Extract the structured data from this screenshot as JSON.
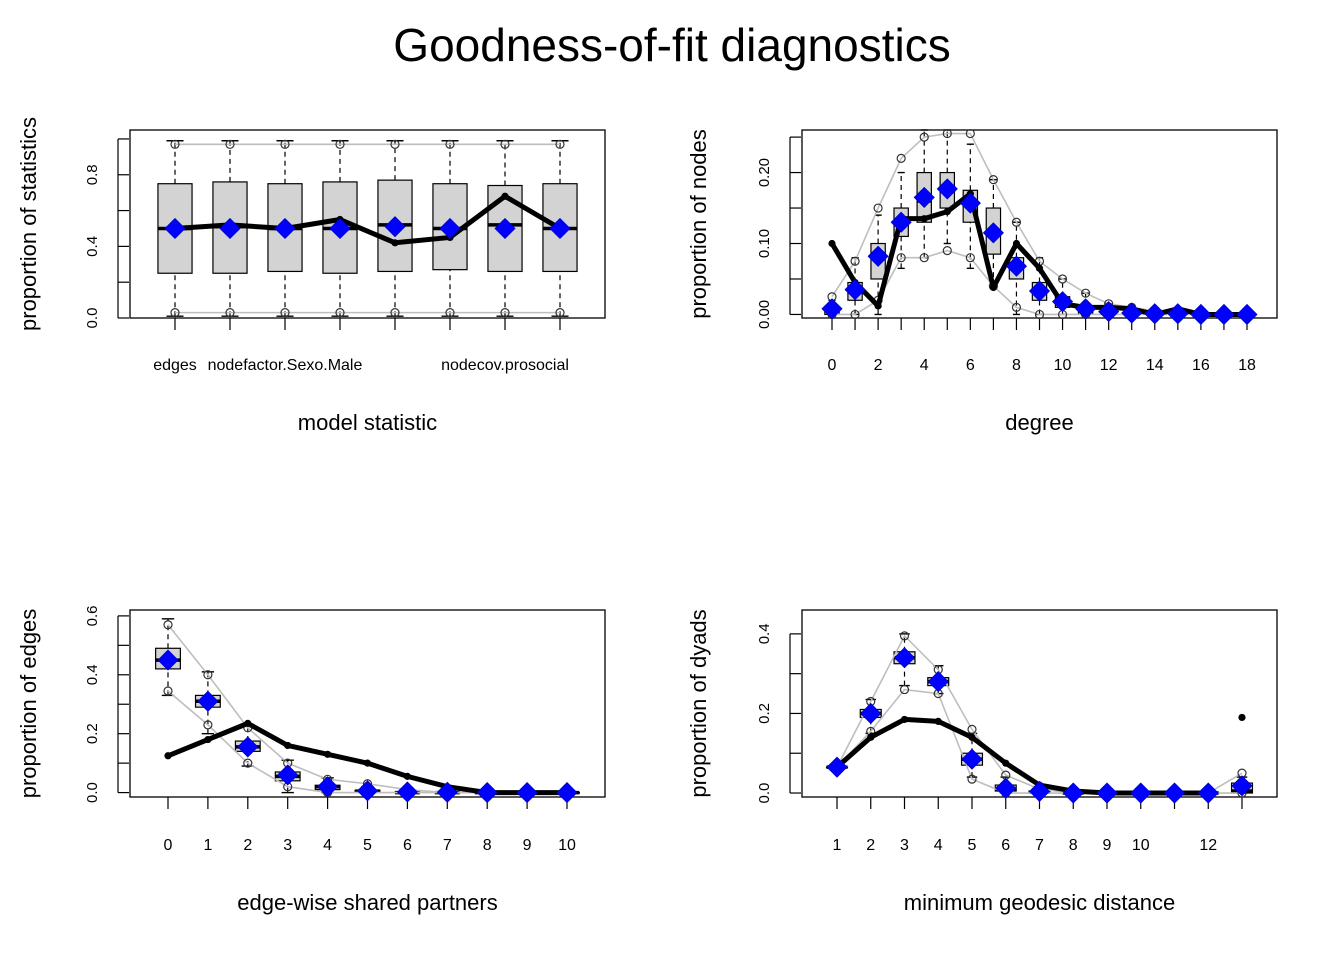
{
  "title": "Goodness-of-fit diagnostics",
  "colors": {
    "box_fill": "#d3d3d3",
    "band_line": "#bebebe",
    "observed_line": "#000000",
    "simulated_mean_marker": "#0000ff"
  },
  "chart_data": [
    {
      "id": "model-statistic",
      "type": "boxplot",
      "xlabel": "model statistic",
      "ylabel": "proportion of statistics",
      "categories": [
        "edges",
        "",
        "nodefactor.Sexo.Male",
        "",
        "",
        "",
        "nodecov.prosocial",
        ""
      ],
      "category_labels_shown": [
        "edges",
        "nodefactor.Sexo.Male",
        "nodecov.prosocial"
      ],
      "ylim": [
        0,
        1.05
      ],
      "yticks": [
        "0.0",
        "0.4",
        "0.8"
      ],
      "ytick_values": [
        0.0,
        0.4,
        0.8
      ],
      "yminor_ticks": [
        0.0,
        0.2,
        0.4,
        0.6,
        0.8,
        1.0
      ],
      "box": {
        "q1": [
          0.25,
          0.25,
          0.26,
          0.25,
          0.26,
          0.27,
          0.26,
          0.26
        ],
        "median": [
          0.5,
          0.51,
          0.5,
          0.5,
          0.52,
          0.5,
          0.52,
          0.5
        ],
        "q3": [
          0.75,
          0.76,
          0.75,
          0.76,
          0.77,
          0.75,
          0.74,
          0.75
        ],
        "whisker_low": [
          0.01,
          0.01,
          0.01,
          0.01,
          0.01,
          0.01,
          0.01,
          0.01
        ],
        "whisker_high": [
          0.99,
          0.99,
          0.99,
          0.99,
          0.99,
          0.99,
          0.99,
          0.99
        ]
      },
      "band_low": [
        0.03,
        0.03,
        0.03,
        0.03,
        0.03,
        0.03,
        0.03,
        0.03
      ],
      "band_high": [
        0.97,
        0.97,
        0.97,
        0.97,
        0.97,
        0.97,
        0.97,
        0.97
      ],
      "observed": [
        0.5,
        0.52,
        0.5,
        0.55,
        0.42,
        0.45,
        0.68,
        0.5
      ],
      "simulated_mean": [
        0.5,
        0.5,
        0.5,
        0.5,
        0.51,
        0.5,
        0.5,
        0.5
      ]
    },
    {
      "id": "degree",
      "type": "boxplot",
      "xlabel": "degree",
      "ylabel": "proportion of nodes",
      "x": [
        0,
        1,
        2,
        3,
        4,
        5,
        6,
        7,
        8,
        9,
        10,
        11,
        12,
        13,
        14,
        15,
        16,
        17,
        18
      ],
      "xtick_labels": [
        "0",
        "",
        "2",
        "",
        "4",
        "",
        "6",
        "",
        "8",
        "",
        "10",
        "",
        "12",
        "",
        "14",
        "",
        "16",
        "",
        "18"
      ],
      "ylim": [
        -0.005,
        0.26
      ],
      "yticks": [
        "0.00",
        "0.10",
        "0.20"
      ],
      "ytick_values": [
        0.0,
        0.1,
        0.2
      ],
      "yminor_ticks": [
        0.0,
        0.05,
        0.1,
        0.15,
        0.2,
        0.25
      ],
      "box": {
        "q1": [
          0.0,
          0.02,
          0.05,
          0.11,
          0.13,
          0.15,
          0.13,
          0.085,
          0.05,
          0.02,
          0.01,
          0.0,
          0.0,
          0.0,
          0.0,
          0.0,
          0.0,
          0.0,
          0.0
        ],
        "median": [
          0.005,
          0.035,
          0.08,
          0.13,
          0.16,
          0.18,
          0.16,
          0.115,
          0.065,
          0.03,
          0.015,
          0.008,
          0.004,
          0.002,
          0.001,
          0.0,
          0.0,
          0.0,
          0.0
        ],
        "q3": [
          0.01,
          0.045,
          0.1,
          0.15,
          0.2,
          0.2,
          0.175,
          0.15,
          0.08,
          0.045,
          0.025,
          0.012,
          0.007,
          0.003,
          0.002,
          0.001,
          0.0,
          0.0,
          0.0
        ],
        "whisker_low": [
          0.0,
          0.0,
          0.0,
          0.065,
          0.08,
          0.1,
          0.065,
          0.04,
          0.0,
          0.0,
          0.0,
          0.0,
          0.0,
          0.0,
          0.0,
          0.0,
          0.0,
          0.0,
          0.0
        ],
        "whisker_high": [
          0.02,
          0.08,
          0.14,
          0.2,
          0.26,
          0.26,
          0.24,
          0.19,
          0.13,
          0.08,
          0.05,
          0.03,
          0.015,
          0.01,
          0.005,
          0.004,
          0.0,
          0.0,
          0.0
        ]
      },
      "band_low": [
        0.0,
        0.0,
        0.02,
        0.08,
        0.08,
        0.09,
        0.08,
        0.04,
        0.01,
        0.0,
        0.0,
        0.0,
        0.0,
        0.0,
        0.0,
        0.0,
        0.0,
        0.0,
        0.0
      ],
      "band_high": [
        0.025,
        0.075,
        0.15,
        0.22,
        0.25,
        0.255,
        0.255,
        0.19,
        0.13,
        0.075,
        0.05,
        0.03,
        0.015,
        0.01,
        0.005,
        0.005,
        0.0,
        0.0,
        0.0
      ],
      "observed": [
        0.1,
        0.045,
        0.012,
        0.135,
        0.135,
        0.145,
        0.17,
        0.038,
        0.1,
        0.065,
        0.015,
        0.01,
        0.01,
        0.008,
        0.0,
        0.008,
        0.0,
        0.0,
        0.0
      ],
      "simulated_mean": [
        0.008,
        0.035,
        0.082,
        0.13,
        0.165,
        0.177,
        0.157,
        0.115,
        0.068,
        0.033,
        0.018,
        0.008,
        0.004,
        0.002,
        0.001,
        0.001,
        0.0,
        0.0,
        0.0
      ]
    },
    {
      "id": "edge-wise-shared-partners",
      "type": "boxplot",
      "xlabel": "edge-wise shared partners",
      "ylabel": "proportion of edges",
      "x": [
        0,
        1,
        2,
        3,
        4,
        5,
        6,
        7,
        8,
        9,
        10
      ],
      "xtick_labels": [
        "0",
        "1",
        "2",
        "3",
        "4",
        "5",
        "6",
        "7",
        "8",
        "9",
        "10"
      ],
      "ylim": [
        -0.015,
        0.62
      ],
      "yticks": [
        "0.0",
        "0.2",
        "0.4",
        "0.6"
      ],
      "ytick_values": [
        0.0,
        0.2,
        0.4,
        0.6
      ],
      "yminor_ticks": [
        0.0,
        0.1,
        0.2,
        0.3,
        0.4,
        0.5,
        0.6
      ],
      "box": {
        "q1": [
          0.42,
          0.29,
          0.14,
          0.04,
          0.01,
          0.002,
          0.0,
          0.0,
          0.0,
          0.0,
          0.0
        ],
        "median": [
          0.45,
          0.31,
          0.155,
          0.055,
          0.02,
          0.005,
          0.0,
          0.0,
          0.0,
          0.0,
          0.0
        ],
        "q3": [
          0.49,
          0.33,
          0.175,
          0.07,
          0.025,
          0.008,
          0.002,
          0.0,
          0.0,
          0.0,
          0.0
        ],
        "whisker_low": [
          0.33,
          0.2,
          0.09,
          0.0,
          0.0,
          0.0,
          0.0,
          0.0,
          0.0,
          0.0,
          0.0
        ],
        "whisker_high": [
          0.59,
          0.41,
          0.23,
          0.11,
          0.05,
          0.02,
          0.01,
          0.0,
          0.0,
          0.0,
          0.0
        ]
      },
      "band_low": [
        0.345,
        0.23,
        0.1,
        0.02,
        0.0,
        0.0,
        0.0,
        0.0,
        0.0,
        0.0,
        0.0
      ],
      "band_high": [
        0.57,
        0.4,
        0.22,
        0.1,
        0.045,
        0.03,
        0.01,
        0.0,
        0.0,
        0.0,
        0.0
      ],
      "observed": [
        0.125,
        0.18,
        0.235,
        0.16,
        0.13,
        0.1,
        0.055,
        0.02,
        0.0,
        0.0,
        0.0
      ],
      "simulated_mean": [
        0.45,
        0.31,
        0.155,
        0.06,
        0.02,
        0.006,
        0.002,
        0.001,
        0.0,
        0.0,
        0.0
      ]
    },
    {
      "id": "minimum-geodesic-distance",
      "type": "boxplot",
      "xlabel": "minimum geodesic distance",
      "ylabel": "proportion of dyads",
      "x": [
        1,
        2,
        3,
        4,
        5,
        6,
        7,
        8,
        9,
        10,
        11,
        12,
        13
      ],
      "xtick_labels": [
        "1",
        "2",
        "3",
        "4",
        "5",
        "6",
        "7",
        "8",
        "9",
        "10",
        "",
        "12",
        ""
      ],
      "ylim": [
        -0.01,
        0.46
      ],
      "yticks": [
        "0.0",
        "0.2",
        "0.4"
      ],
      "ytick_values": [
        0.0,
        0.2,
        0.4
      ],
      "yminor_ticks": [
        0.0,
        0.1,
        0.2,
        0.3,
        0.4
      ],
      "box": {
        "q1": [
          0.065,
          0.19,
          0.325,
          0.27,
          0.07,
          0.005,
          0.0,
          0.0,
          0.0,
          0.0,
          0.0,
          0.0,
          0.0
        ],
        "median": [
          0.065,
          0.2,
          0.34,
          0.28,
          0.085,
          0.01,
          0.002,
          0.0,
          0.0,
          0.0,
          0.0,
          0.0,
          0.005
        ],
        "q3": [
          0.065,
          0.21,
          0.355,
          0.29,
          0.1,
          0.02,
          0.005,
          0.0,
          0.0,
          0.0,
          0.0,
          0.0,
          0.025
        ],
        "whisker_low": [
          0.065,
          0.15,
          0.27,
          0.25,
          0.04,
          0.0,
          0.0,
          0.0,
          0.0,
          0.0,
          0.0,
          0.0,
          0.0
        ],
        "whisker_high": [
          0.065,
          0.235,
          0.4,
          0.32,
          0.15,
          0.04,
          0.01,
          0.0,
          0.0,
          0.0,
          0.0,
          0.0,
          0.04
        ]
      },
      "band_low": [
        0.065,
        0.155,
        0.26,
        0.25,
        0.035,
        0.0,
        0.0,
        0.0,
        0.0,
        0.0,
        0.0,
        0.0,
        0.0
      ],
      "band_high": [
        0.065,
        0.23,
        0.395,
        0.31,
        0.16,
        0.045,
        0.01,
        0.0,
        0.0,
        0.0,
        0.0,
        0.0,
        0.05
      ],
      "observed": [
        0.065,
        0.14,
        0.185,
        0.18,
        0.14,
        0.075,
        0.02,
        0.005,
        0.0,
        0.0,
        0.0,
        0.0,
        0.19
      ],
      "observed_joined_up_to_index": 11,
      "simulated_mean": [
        0.065,
        0.2,
        0.34,
        0.28,
        0.085,
        0.012,
        0.004,
        0.0,
        0.0,
        0.0,
        0.0,
        0.0,
        0.018
      ]
    }
  ]
}
